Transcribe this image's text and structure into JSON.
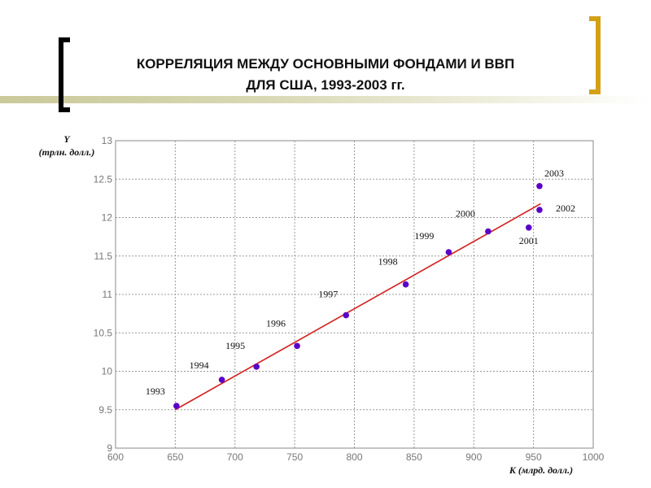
{
  "title": {
    "line1": "КОРРЕЛЯЦИЯ МЕЖДУ ОСНОВНЫМИ ФОНДАМИ И ВВП",
    "line2": "ДЛЯ США, 1993-2003 гг."
  },
  "colors": {
    "points": "#5a00c8",
    "fit_line": "#d42020",
    "bracket_right": "#d4a017",
    "bracket_left": "#000000"
  },
  "chart_data": {
    "type": "scatter",
    "title": "КОРРЕЛЯЦИЯ МЕЖДУ ОСНОВНЫМИ ФОНДАМИ И ВВП ДЛЯ США, 1993-2003 гг.",
    "xlabel": "K (млрд. долл.)",
    "ylabel_line1": "Y",
    "ylabel_line2": "(трлн. долл.)",
    "xlim": [
      600,
      1000
    ],
    "ylim": [
      9,
      13
    ],
    "grid": true,
    "xticks": [
      "600",
      "650",
      "700",
      "750",
      "800",
      "850",
      "900",
      "950",
      "1000"
    ],
    "yticks": [
      "9",
      "9.5",
      "10",
      "10.5",
      "11",
      "11.5",
      "12",
      "12.5",
      "13"
    ],
    "points": [
      {
        "label": "1993",
        "x": 651,
        "y": 9.55
      },
      {
        "label": "1994",
        "x": 689,
        "y": 9.89
      },
      {
        "label": "1995",
        "x": 718,
        "y": 10.06
      },
      {
        "label": "1996",
        "x": 752,
        "y": 10.33
      },
      {
        "label": "1997",
        "x": 793,
        "y": 10.73
      },
      {
        "label": "1998",
        "x": 843,
        "y": 11.13
      },
      {
        "label": "1999",
        "x": 879,
        "y": 11.55
      },
      {
        "label": "2000",
        "x": 912,
        "y": 11.82
      },
      {
        "label": "2001",
        "x": 946,
        "y": 11.87
      },
      {
        "label": "2002",
        "x": 955,
        "y": 12.1
      },
      {
        "label": "2003",
        "x": 955,
        "y": 12.41
      }
    ],
    "fit_line": {
      "x": [
        650,
        956
      ],
      "y": [
        9.5,
        12.18
      ]
    }
  }
}
